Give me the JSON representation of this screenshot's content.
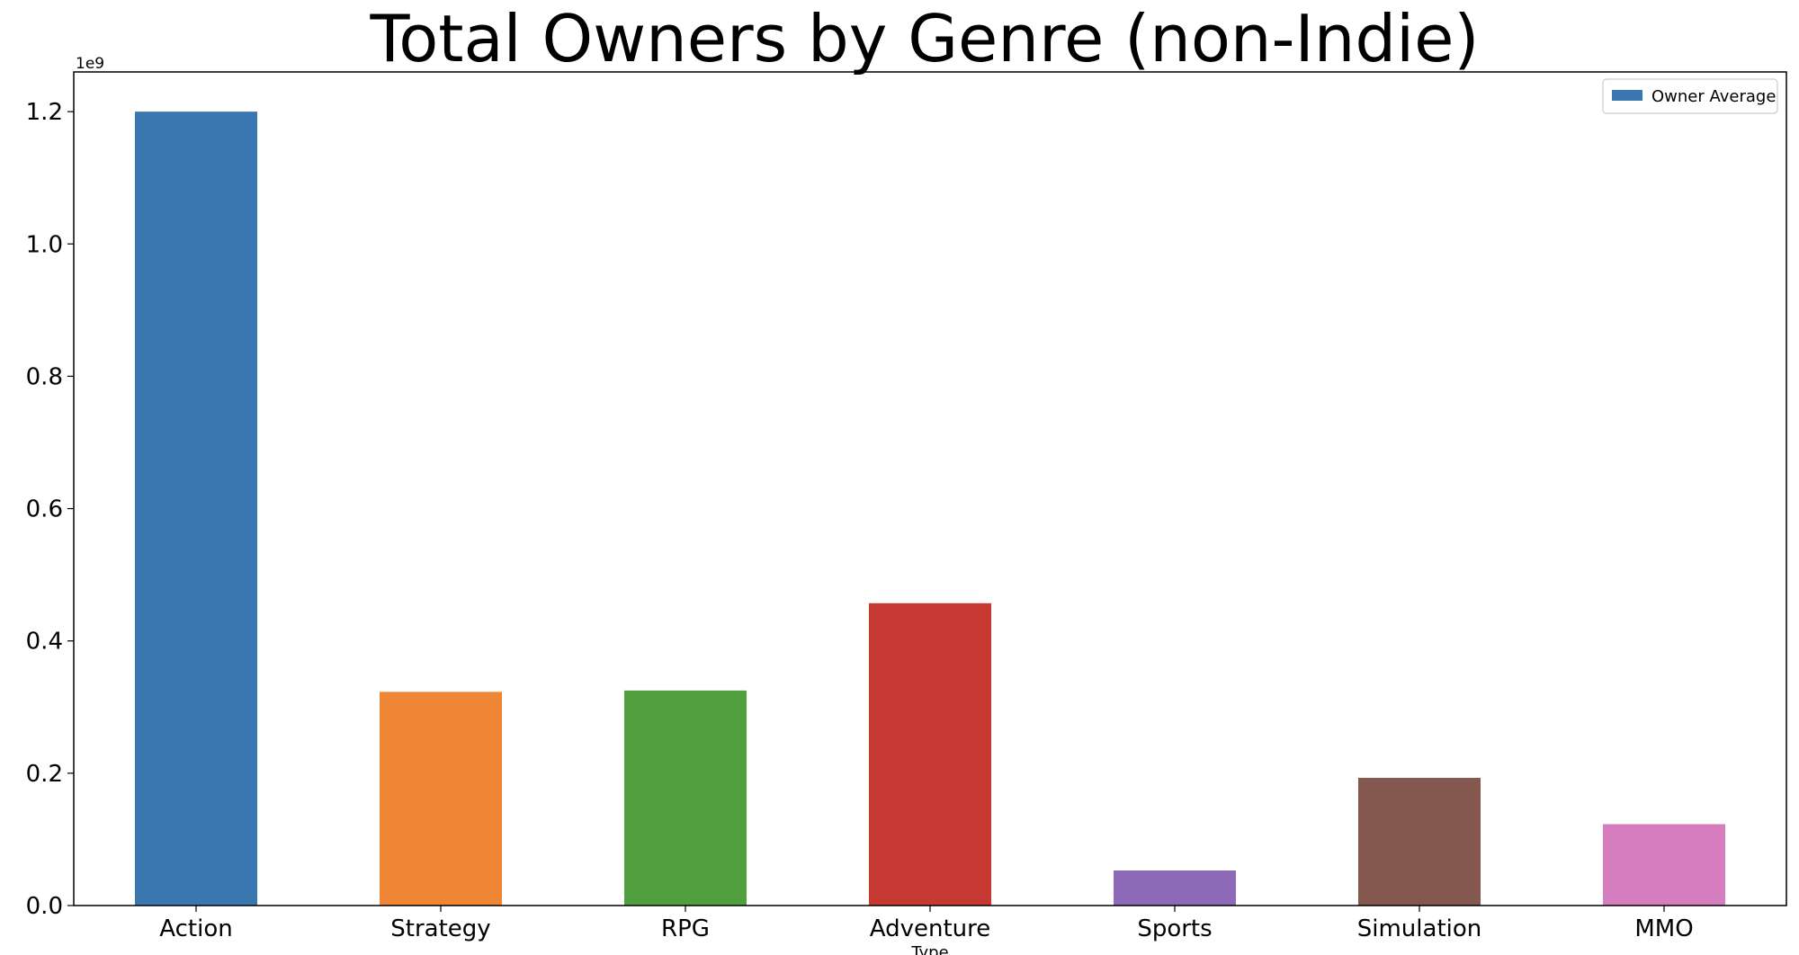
{
  "chart_data": {
    "type": "bar",
    "title": "Total Owners by Genre (non-Indie)",
    "xlabel": "Type",
    "ylabel": "",
    "y_offset_label": "1e9",
    "categories": [
      "Action",
      "Strategy",
      "RPG",
      "Adventure",
      "Sports",
      "Simulation",
      "MMO"
    ],
    "series": [
      {
        "name": "Owner Average",
        "values": [
          1200000000,
          323000000,
          325000000,
          457000000,
          53000000,
          193000000,
          123000000
        ]
      }
    ],
    "bar_colors": [
      "#3a76af",
      "#ef8636",
      "#519e3e",
      "#c53932",
      "#8d6ab8",
      "#84584e",
      "#d57dbe"
    ],
    "ylim": [
      0,
      1260000000
    ],
    "y_ticks": [
      0,
      200000000,
      400000000,
      600000000,
      800000000,
      1000000000,
      1200000000
    ],
    "y_tick_labels": [
      "0.0",
      "0.2",
      "0.4",
      "0.6",
      "0.8",
      "1.0",
      "1.2"
    ],
    "grid": false,
    "legend_position": "top-right"
  }
}
